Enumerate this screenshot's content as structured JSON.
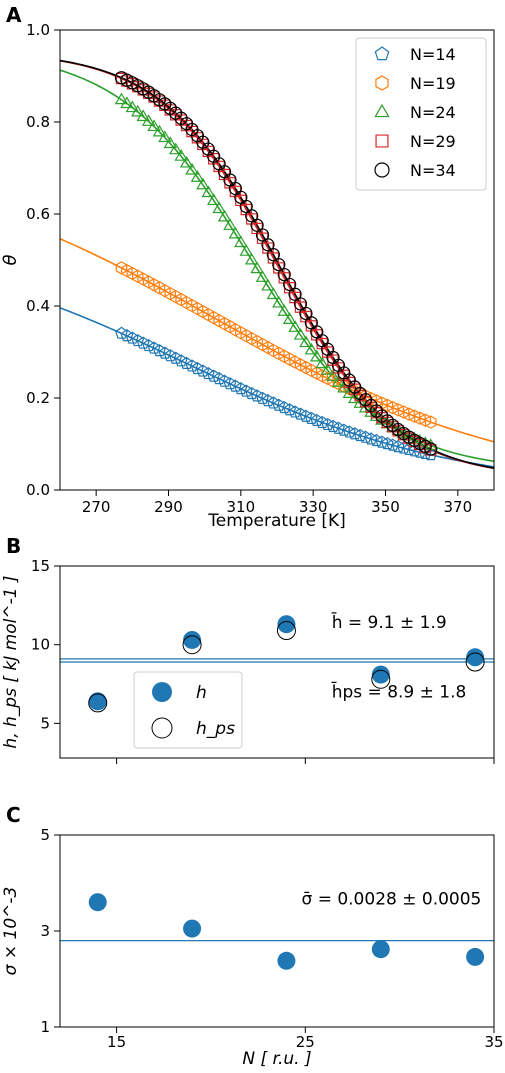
{
  "figure": {
    "panel_labels": [
      "A",
      "B",
      "C"
    ]
  },
  "chart_data": [
    {
      "panel": "A",
      "type": "scatter",
      "xlabel": "Temperature [K]",
      "ylabel": "θ",
      "xlim": [
        260,
        380
      ],
      "ylim": [
        0.0,
        1.0
      ],
      "xticks": [
        270,
        290,
        310,
        330,
        350,
        370
      ],
      "yticks": [
        0.0,
        0.2,
        0.4,
        0.6,
        0.8,
        1.0
      ],
      "ytick_labels": [
        "0.0",
        "0.2",
        "0.4",
        "0.6",
        "0.8",
        "1.0"
      ],
      "legend_position": "top-right",
      "series": [
        {
          "name": "N=14",
          "marker": "pentagon",
          "color": "#1f77b4",
          "fit": {
            "a": 0.0,
            "b": 0.55,
            "c": -0.027,
            "d": 295
          }
        },
        {
          "name": "N=19",
          "marker": "hexagon",
          "color": "#ff7f0e",
          "fit": {
            "a": 0.0,
            "b": 0.745,
            "c": -0.0235,
            "d": 303
          }
        },
        {
          "name": "N=24",
          "marker": "triangle",
          "color": "#2ca02c",
          "fit": {
            "a": 0.04,
            "b": 0.92,
            "c": -0.055,
            "d": 313
          }
        },
        {
          "name": "N=29",
          "marker": "square",
          "color": "#d62728",
          "fit": {
            "a": 0.025,
            "b": 0.93,
            "c": -0.062,
            "d": 320
          }
        },
        {
          "name": "N=34",
          "marker": "circle",
          "color": "#000000",
          "fit": {
            "a": 0.025,
            "b": 0.93,
            "c": -0.062,
            "d": 320.5
          }
        }
      ],
      "points": {
        "x_start": 277,
        "x_end": 363,
        "step": 1.5
      }
    },
    {
      "panel": "B",
      "type": "scatter",
      "ylabel": "h, h_ps [ kJ mol^-1 ]",
      "xlim": [
        12,
        35
      ],
      "ylim": [
        2.8,
        15
      ],
      "yticks": [
        5,
        10,
        15
      ],
      "x": [
        14,
        19,
        24,
        29,
        34
      ],
      "series": [
        {
          "name": "h",
          "values": [
            6.4,
            10.3,
            11.3,
            8.1,
            9.2
          ],
          "filled": true,
          "color": "#1f77b4"
        },
        {
          "name": "h_ps",
          "values": [
            6.3,
            10.0,
            10.9,
            7.8,
            8.9
          ],
          "filled": false,
          "color": "#000000"
        }
      ],
      "hlines": [
        9.1,
        8.9
      ],
      "legend_position": "lower-left",
      "annotations": [
        {
          "text": "h̄ = 9.1 ± 1.9",
          "x": 26.4,
          "y": 11.05
        },
        {
          "text": "h̄ps = 8.9 ± 1.8",
          "x": 26.4,
          "y": 6.65
        }
      ]
    },
    {
      "panel": "C",
      "type": "scatter",
      "xlabel": "N [ r.u. ]",
      "ylabel": "σ × 10^-3",
      "xlim": [
        12,
        35
      ],
      "ylim": [
        1,
        5
      ],
      "xticks": [
        15,
        25,
        35
      ],
      "yticks": [
        1,
        3,
        5
      ],
      "x": [
        14,
        19,
        24,
        29,
        34
      ],
      "series": [
        {
          "name": "σ",
          "values": [
            3.6,
            3.05,
            2.38,
            2.62,
            2.46
          ],
          "filled": true,
          "color": "#1f77b4"
        }
      ],
      "hlines": [
        2.8
      ],
      "annotations": [
        {
          "text": "σ̄ = 0.0028 ± 0.0005",
          "x": 24.8,
          "y": 3.55
        }
      ]
    }
  ]
}
